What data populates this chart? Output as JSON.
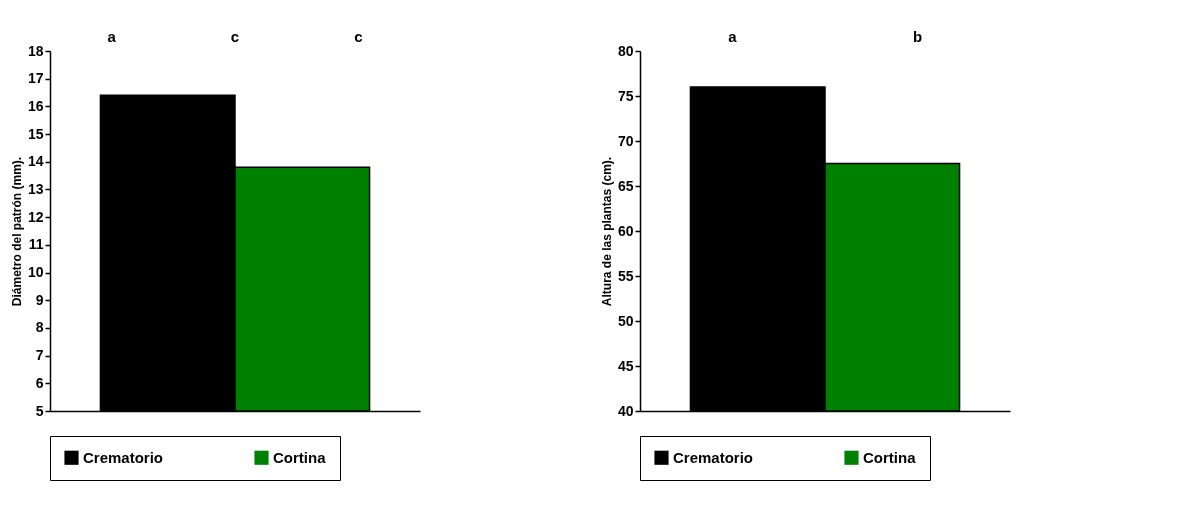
{
  "chart_data": [
    {
      "type": "bar",
      "ylabel": "Diámetro del  patrón  (mm).",
      "categories": [
        null
      ],
      "ylim": [
        5,
        18
      ],
      "yticks": [
        5,
        6,
        7,
        8,
        9,
        10,
        11,
        12,
        13,
        14,
        15,
        16,
        17,
        18
      ],
      "tick_labels": "y",
      "legend": "bottom",
      "series": [
        {
          "name": "Crematorio",
          "color": "#000000",
          "values": [
            16.4
          ]
        },
        {
          "name": "Cortina",
          "color": "#008000",
          "values": [
            13.8
          ]
        }
      ],
      "annotations": [
        "a",
        "c",
        "c"
      ]
    },
    {
      "type": "bar",
      "ylabel": "Altura de las plantas (cm).",
      "categories": [
        null
      ],
      "ylim": [
        40,
        80
      ],
      "yticks": [
        40,
        45,
        50,
        55,
        60,
        65,
        70,
        75,
        80
      ],
      "tick_labels": "y",
      "legend": "bottom",
      "series": [
        {
          "name": "Crematorio",
          "color": "#000000",
          "values": [
            76
          ]
        },
        {
          "name": "Cortina",
          "color": "#008000",
          "values": [
            67.5
          ]
        }
      ],
      "annotations": [
        "a",
        "b"
      ]
    }
  ]
}
